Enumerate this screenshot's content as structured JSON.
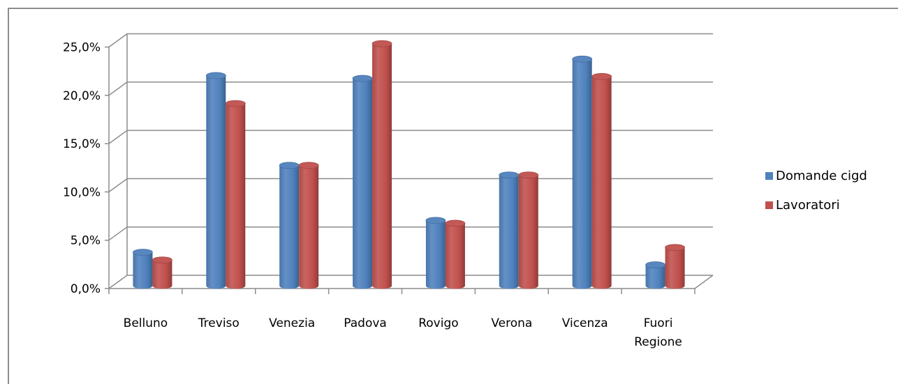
{
  "chart_data": {
    "type": "bar",
    "title": "",
    "xlabel": "",
    "ylabel": "",
    "categories": [
      "Belluno",
      "Treviso",
      "Venezia",
      "Padova",
      "Rovigo",
      "Verona",
      "Vicenza",
      "Fuori Regione"
    ],
    "category_lines": [
      [
        "Belluno"
      ],
      [
        "Treviso"
      ],
      [
        "Venezia"
      ],
      [
        "Padova"
      ],
      [
        "Rovigo"
      ],
      [
        "Verona"
      ],
      [
        "Vicenza"
      ],
      [
        "Fuori",
        "Regione"
      ]
    ],
    "series": [
      {
        "name": "Domande cigd",
        "color": "#4f81bd",
        "values": [
          3.1,
          21.4,
          12.1,
          21.1,
          6.4,
          11.1,
          23.1,
          1.8
        ]
      },
      {
        "name": "Lavoratori",
        "color": "#c0504d",
        "values": [
          2.3,
          18.5,
          12.1,
          24.7,
          6.1,
          11.1,
          21.3,
          3.6
        ]
      }
    ],
    "ylim": [
      0,
      25
    ],
    "yticks": [
      "0,0%",
      "5,0%",
      "10,0%",
      "15,0%",
      "20,0%",
      "25,0%"
    ],
    "y_unit": "%",
    "style": "3d-cylinder",
    "grid": true,
    "legend_position": "right"
  }
}
